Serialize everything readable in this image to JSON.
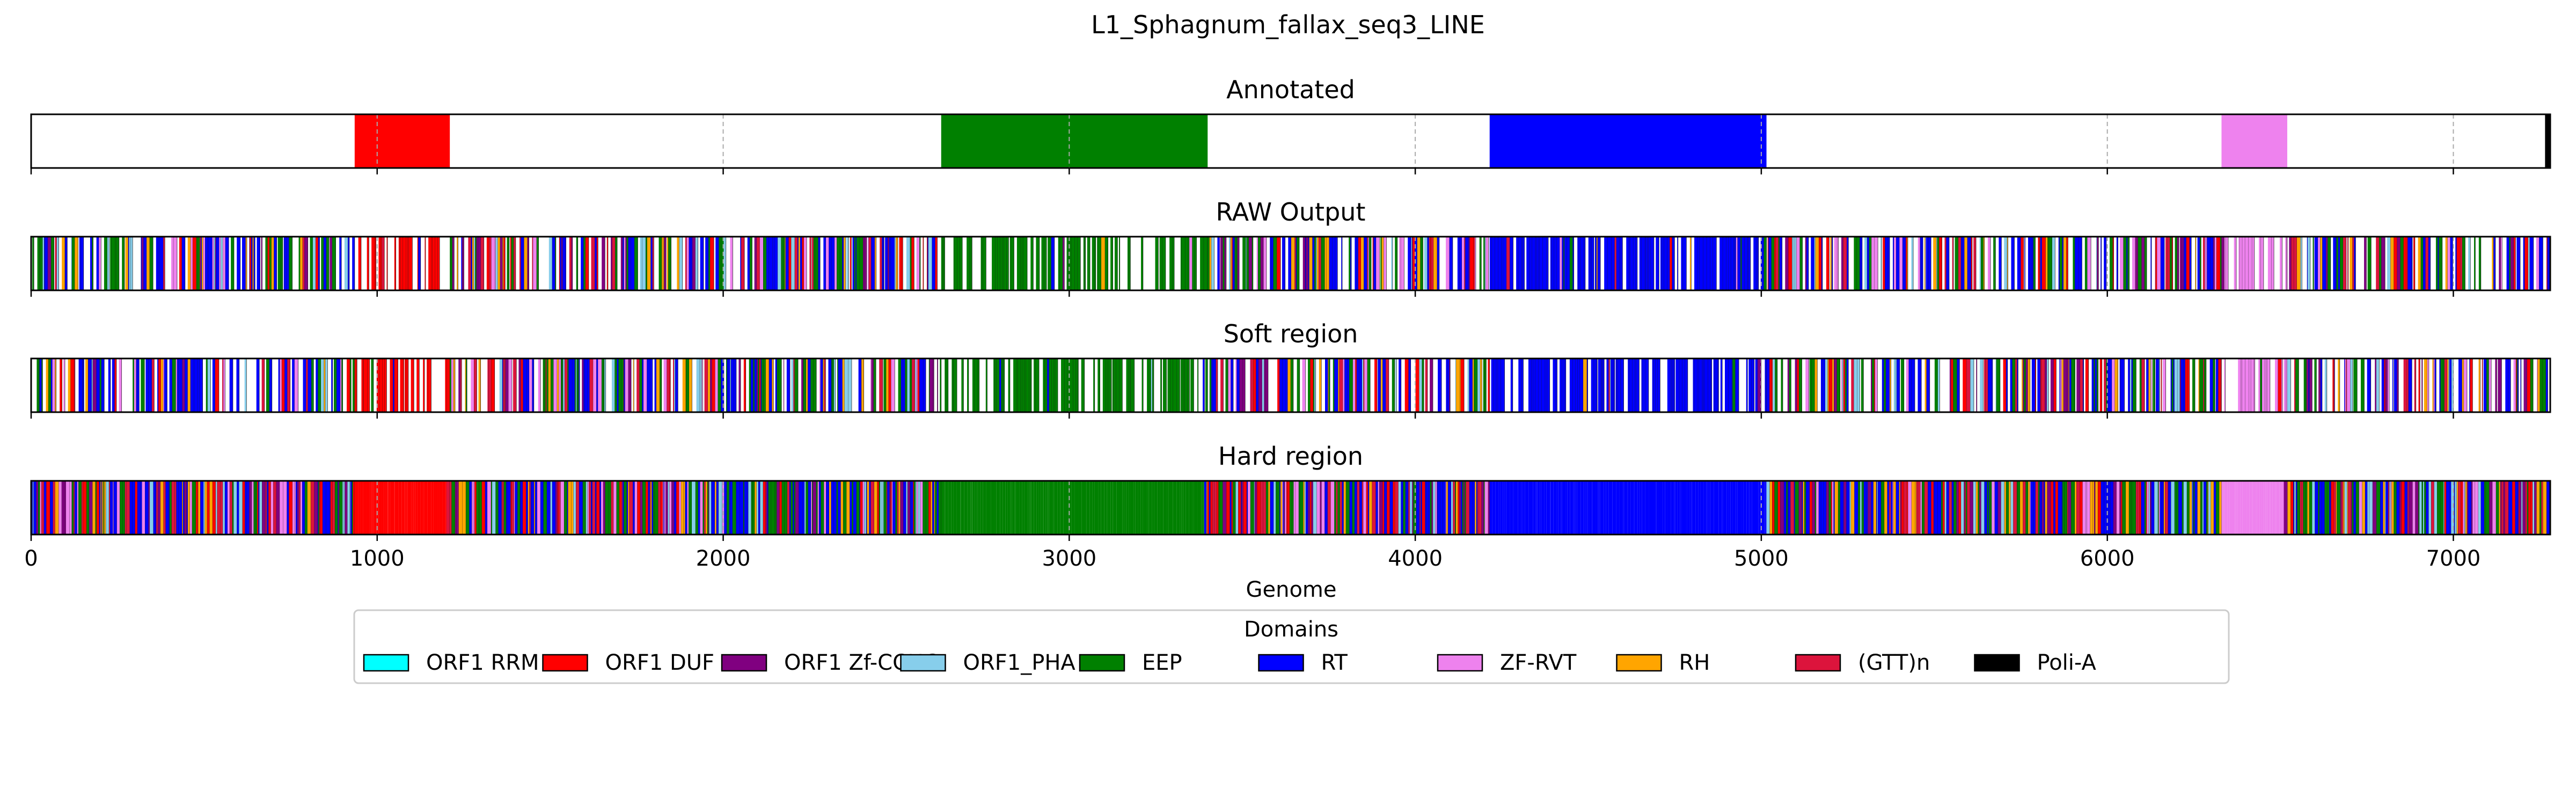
{
  "chart_data": {
    "type": "genome-track",
    "title": "L1_Sphagnum_fallax_seq3_LINE",
    "xlabel": "Genome",
    "xlim": [
      0,
      7280
    ],
    "xticks": [
      0,
      1000,
      2000,
      3000,
      4000,
      5000,
      6000,
      7000
    ],
    "grid": "dashed vertical, light gray",
    "tracks": [
      {
        "title": "Annotated",
        "style": "segments",
        "segments": [
          {
            "start": 935,
            "end": 1210,
            "domain": "ORF1 DUF"
          },
          {
            "start": 2630,
            "end": 3400,
            "domain": "EEP"
          },
          {
            "start": 4215,
            "end": 5015,
            "domain": "RT"
          },
          {
            "start": 6330,
            "end": 6520,
            "domain": "ZF-RVT"
          },
          {
            "start": 7265,
            "end": 7280,
            "domain": "Poli-A"
          }
        ]
      },
      {
        "title": "RAW Output",
        "style": "raw",
        "regions": [
          {
            "start": 0,
            "end": 935,
            "domain": "mixed",
            "density": 0.7
          },
          {
            "start": 935,
            "end": 1210,
            "domain": "ORF1 DUF",
            "density": 0.65
          },
          {
            "start": 1210,
            "end": 2630,
            "domain": "mixed",
            "density": 0.7
          },
          {
            "start": 2630,
            "end": 3400,
            "domain": "EEP",
            "density": 0.62
          },
          {
            "start": 3400,
            "end": 4215,
            "domain": "mixed",
            "density": 0.72
          },
          {
            "start": 4215,
            "end": 5015,
            "domain": "RT",
            "density": 0.78
          },
          {
            "start": 5015,
            "end": 6330,
            "domain": "mixed",
            "density": 0.7
          },
          {
            "start": 6330,
            "end": 6520,
            "domain": "ZF-RVT",
            "density": 0.55
          },
          {
            "start": 6520,
            "end": 7280,
            "domain": "mixed",
            "density": 0.7
          }
        ]
      },
      {
        "title": "Soft region",
        "style": "raw",
        "regions": [
          {
            "start": 0,
            "end": 935,
            "domain": "mixed",
            "density": 0.7
          },
          {
            "start": 935,
            "end": 1210,
            "domain": "ORF1 DUF",
            "density": 0.62
          },
          {
            "start": 1210,
            "end": 2630,
            "domain": "mixed",
            "density": 0.72
          },
          {
            "start": 2630,
            "end": 3400,
            "domain": "EEP",
            "density": 0.6
          },
          {
            "start": 3400,
            "end": 4215,
            "domain": "mixed",
            "density": 0.72
          },
          {
            "start": 4215,
            "end": 5015,
            "domain": "RT",
            "density": 0.76
          },
          {
            "start": 5015,
            "end": 6330,
            "domain": "mixed",
            "density": 0.7
          },
          {
            "start": 6330,
            "end": 6520,
            "domain": "ZF-RVT",
            "density": 0.5
          },
          {
            "start": 6520,
            "end": 7280,
            "domain": "mixed",
            "density": 0.72
          }
        ]
      },
      {
        "title": "Hard region",
        "style": "hard",
        "regions": [
          {
            "start": 0,
            "end": 935,
            "domain": "mixed",
            "density": 1
          },
          {
            "start": 935,
            "end": 1200,
            "domain": "ORF1 DUF",
            "density": 1
          },
          {
            "start": 1200,
            "end": 2630,
            "domain": "mixed",
            "density": 1
          },
          {
            "start": 2630,
            "end": 3390,
            "domain": "EEP",
            "density": 1
          },
          {
            "start": 3390,
            "end": 4215,
            "domain": "mixed",
            "density": 1
          },
          {
            "start": 4215,
            "end": 5015,
            "domain": "RT",
            "density": 1
          },
          {
            "start": 5015,
            "end": 6330,
            "domain": "mixed",
            "density": 1
          },
          {
            "start": 6330,
            "end": 6510,
            "domain": "ZF-RVT",
            "density": 1
          },
          {
            "start": 6510,
            "end": 7280,
            "domain": "mixed",
            "density": 1
          }
        ]
      }
    ],
    "legend": {
      "title": "Domains",
      "placement": "bottom-center",
      "entries": [
        {
          "name": "ORF1 RRM",
          "color": "#00ffff"
        },
        {
          "name": "ORF1 DUF",
          "color": "#ff0000"
        },
        {
          "name": "ORF1 Zf-CCHC",
          "color": "#800080"
        },
        {
          "name": "ORF1_PHA",
          "color": "#87ceeb"
        },
        {
          "name": "EEP",
          "color": "#008000"
        },
        {
          "name": "RT",
          "color": "#0000ff"
        },
        {
          "name": "ZF-RVT",
          "color": "#ee82ee"
        },
        {
          "name": "RH",
          "color": "#ffa500"
        },
        {
          "name": "(GTT)n",
          "color": "#dc143c"
        },
        {
          "name": "Poli-A",
          "color": "#000000"
        }
      ]
    },
    "mixed_palette": {
      "blue": "#0000ff",
      "green": "#008000",
      "purple": "#800080",
      "crimson": "#dc143c",
      "skyblue": "#87ceeb",
      "violet": "#ee82ee",
      "orange": "#ffa500",
      "red": "#ff0000"
    }
  }
}
